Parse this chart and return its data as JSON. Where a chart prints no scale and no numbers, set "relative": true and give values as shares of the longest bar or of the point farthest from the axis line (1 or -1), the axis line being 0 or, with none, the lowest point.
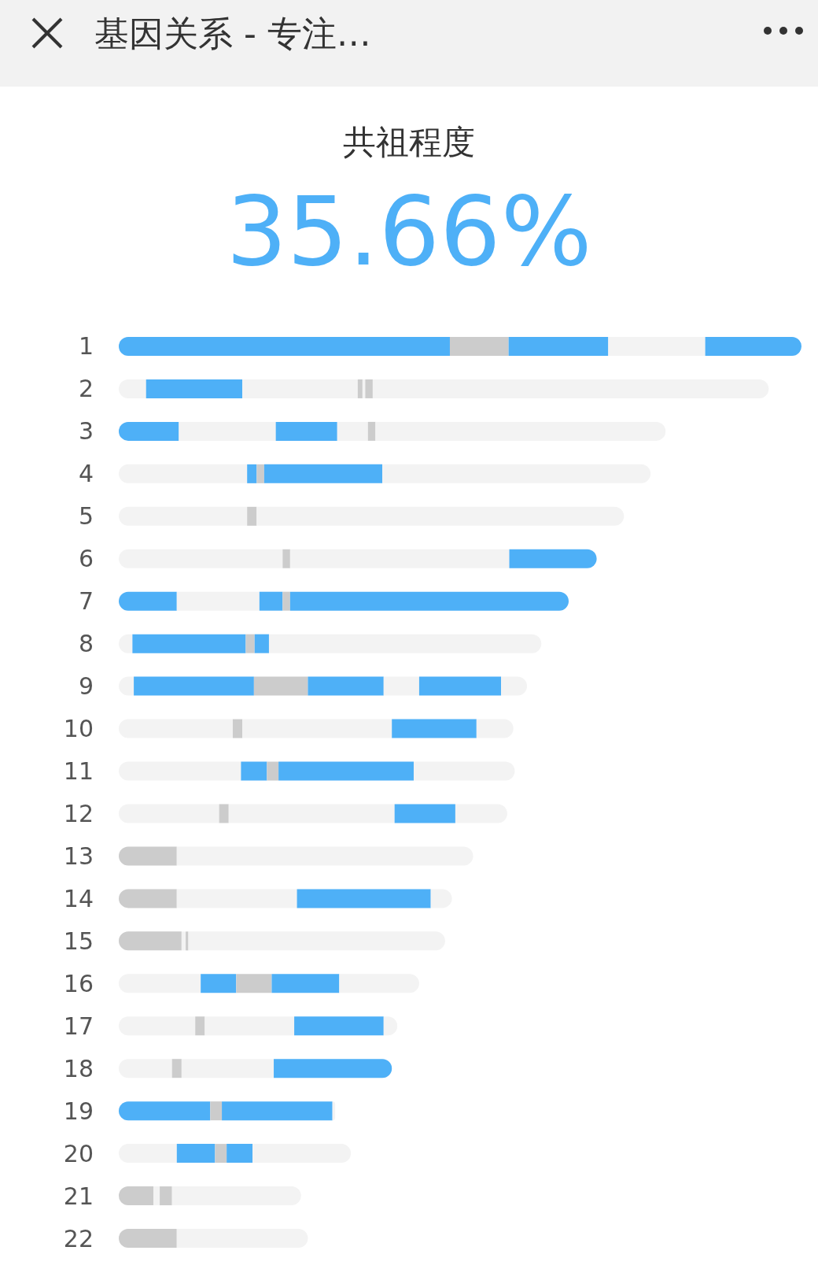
{
  "chart_data": {
    "type": "bar",
    "title": "共祖程度",
    "subtitle": "35.66%",
    "annotations": [
      "基因关系 - 专注…"
    ],
    "relative": true,
    "orientation": "horizontal",
    "stacked": true,
    "categories": [
      "1",
      "2",
      "3",
      "4",
      "5",
      "6",
      "7",
      "8",
      "9",
      "10",
      "11",
      "12",
      "13",
      "14",
      "15",
      "16",
      "17",
      "18",
      "19",
      "20",
      "21",
      "22"
    ],
    "series": [
      {
        "values": [
          0.485,
          0.04,
          0.088,
          0.188,
          0.188,
          0.24,
          0.085,
          0.02,
          0.022,
          0.167,
          0.179,
          0.147,
          0.085,
          0.085,
          0.092,
          0.12,
          0.112,
          0.078,
          0.134,
          0.085,
          0.051,
          0.085
        ],
        "colors": [
          "#4eb0f7",
          "#f3f3f3",
          "#4eb0f7",
          "#f3f3f3",
          "#f3f3f3",
          "#f3f3f3",
          "#4eb0f7",
          "#f3f3f3",
          "#f3f3f3",
          "#f3f3f3",
          "#f3f3f3",
          "#f3f3f3",
          "#cccccc",
          "#cccccc",
          "#cccccc",
          "#f3f3f3",
          "#f3f3f3",
          "#f3f3f3",
          "#4eb0f7",
          "#f3f3f3",
          "#cccccc",
          "#cccccc"
        ]
      },
      {
        "values": [
          0.086,
          0.141,
          0.142,
          0.014,
          0.014,
          0.011,
          0.121,
          0.166,
          0.176,
          0.014,
          0.038,
          0.014,
          0.434,
          0.176,
          0.006,
          0.052,
          0.014,
          0.014,
          0.017,
          0.056,
          0.009,
          0.192
        ],
        "colors": [
          "#cccccc",
          "#4eb0f7",
          "#f3f3f3",
          "#4eb0f7",
          "#cccccc",
          "#cccccc",
          "#f3f3f3",
          "#4eb0f7",
          "#4eb0f7",
          "#cccccc",
          "#4eb0f7",
          "#cccccc",
          "#f3f3f3",
          "#f3f3f3",
          "#f3f3f3",
          "#4eb0f7",
          "#cccccc",
          "#cccccc",
          "#cccccc",
          "#4eb0f7",
          "#f3f3f3",
          "#f3f3f3"
        ]
      },
      {
        "values": [
          0.146,
          0.169,
          0.09,
          0.011,
          0.538,
          0.321,
          0.034,
          0.013,
          0.079,
          0.219,
          0.017,
          0.243,
          null,
          0.196,
          0.004,
          0.052,
          0.131,
          0.135,
          0.162,
          0.017,
          0.018,
          null
        ],
        "colors": [
          "#4eb0f7",
          "#f3f3f3",
          "#4eb0f7",
          "#cccccc",
          "#f3f3f3",
          "#f3f3f3",
          "#4eb0f7",
          "#cccccc",
          "#cccccc",
          "#f3f3f3",
          "#cccccc",
          "#f3f3f3",
          null,
          "#4eb0f7",
          "#cccccc",
          "#cccccc",
          "#f3f3f3",
          "#f3f3f3",
          "#4eb0f7",
          "#cccccc",
          "#cccccc",
          null
        ]
      },
      {
        "values": [
          0.142,
          0.007,
          0.045,
          0.173,
          null,
          0.128,
          0.011,
          0.021,
          0.111,
          0.124,
          0.198,
          0.089,
          null,
          0.031,
          0.376,
          0.099,
          0.131,
          0.173,
          0.004,
          0.038,
          0.189,
          null
        ],
        "colors": [
          "#f3f3f3",
          "#cccccc",
          "#f3f3f3",
          "#4eb0f7",
          null,
          "#4eb0f7",
          "#cccccc",
          "#4eb0f7",
          "#4eb0f7",
          "#4eb0f7",
          "#4eb0f7",
          "#4eb0f7",
          null,
          "#f3f3f3",
          "#f3f3f3",
          "#4eb0f7",
          "#4eb0f7",
          "#4eb0f7",
          "#f3f3f3",
          "#4eb0f7",
          "#f3f3f3",
          null
        ]
      },
      {
        "values": [
          0.141,
          0.004,
          0.011,
          0.393,
          null,
          null,
          0.408,
          0.399,
          0.052,
          0.054,
          0.148,
          0.076,
          null,
          null,
          null,
          0.117,
          0.02,
          null,
          null,
          0.144,
          null,
          null
        ],
        "colors": [
          "#4eb0f7",
          "#f3f3f3",
          "#cccccc",
          "#f3f3f3",
          null,
          null,
          "#4eb0f7",
          "#f3f3f3",
          "#f3f3f3",
          "#f3f3f3",
          "#f3f3f3",
          "#f3f3f3",
          null,
          null,
          null,
          "#f3f3f3",
          "#f3f3f3",
          null,
          null,
          "#f3f3f3",
          null,
          null
        ]
      },
      {
        "values": [
          null,
          0.011,
          0.425,
          null,
          null,
          null,
          null,
          null,
          0.12,
          null,
          null,
          null,
          null,
          null,
          null,
          null,
          null,
          null,
          null,
          null,
          null,
          null
        ],
        "colors": [
          null,
          "#cccccc",
          "#f3f3f3",
          null,
          null,
          null,
          null,
          null,
          "#4eb0f7",
          null,
          null,
          null,
          null,
          null,
          null,
          null,
          null,
          null,
          null,
          null,
          null,
          null
        ]
      },
      {
        "values": [
          null,
          0.58,
          null,
          null,
          null,
          null,
          null,
          null,
          0.038,
          null,
          null,
          null,
          null,
          null,
          null,
          null,
          null,
          null,
          null,
          null,
          null,
          null
        ],
        "colors": [
          null,
          "#f3f3f3",
          null,
          null,
          null,
          null,
          null,
          null,
          "#f3f3f3",
          null,
          null,
          null,
          null,
          null,
          null,
          null,
          null,
          null,
          null,
          null,
          null,
          null
        ]
      }
    ]
  }
}
